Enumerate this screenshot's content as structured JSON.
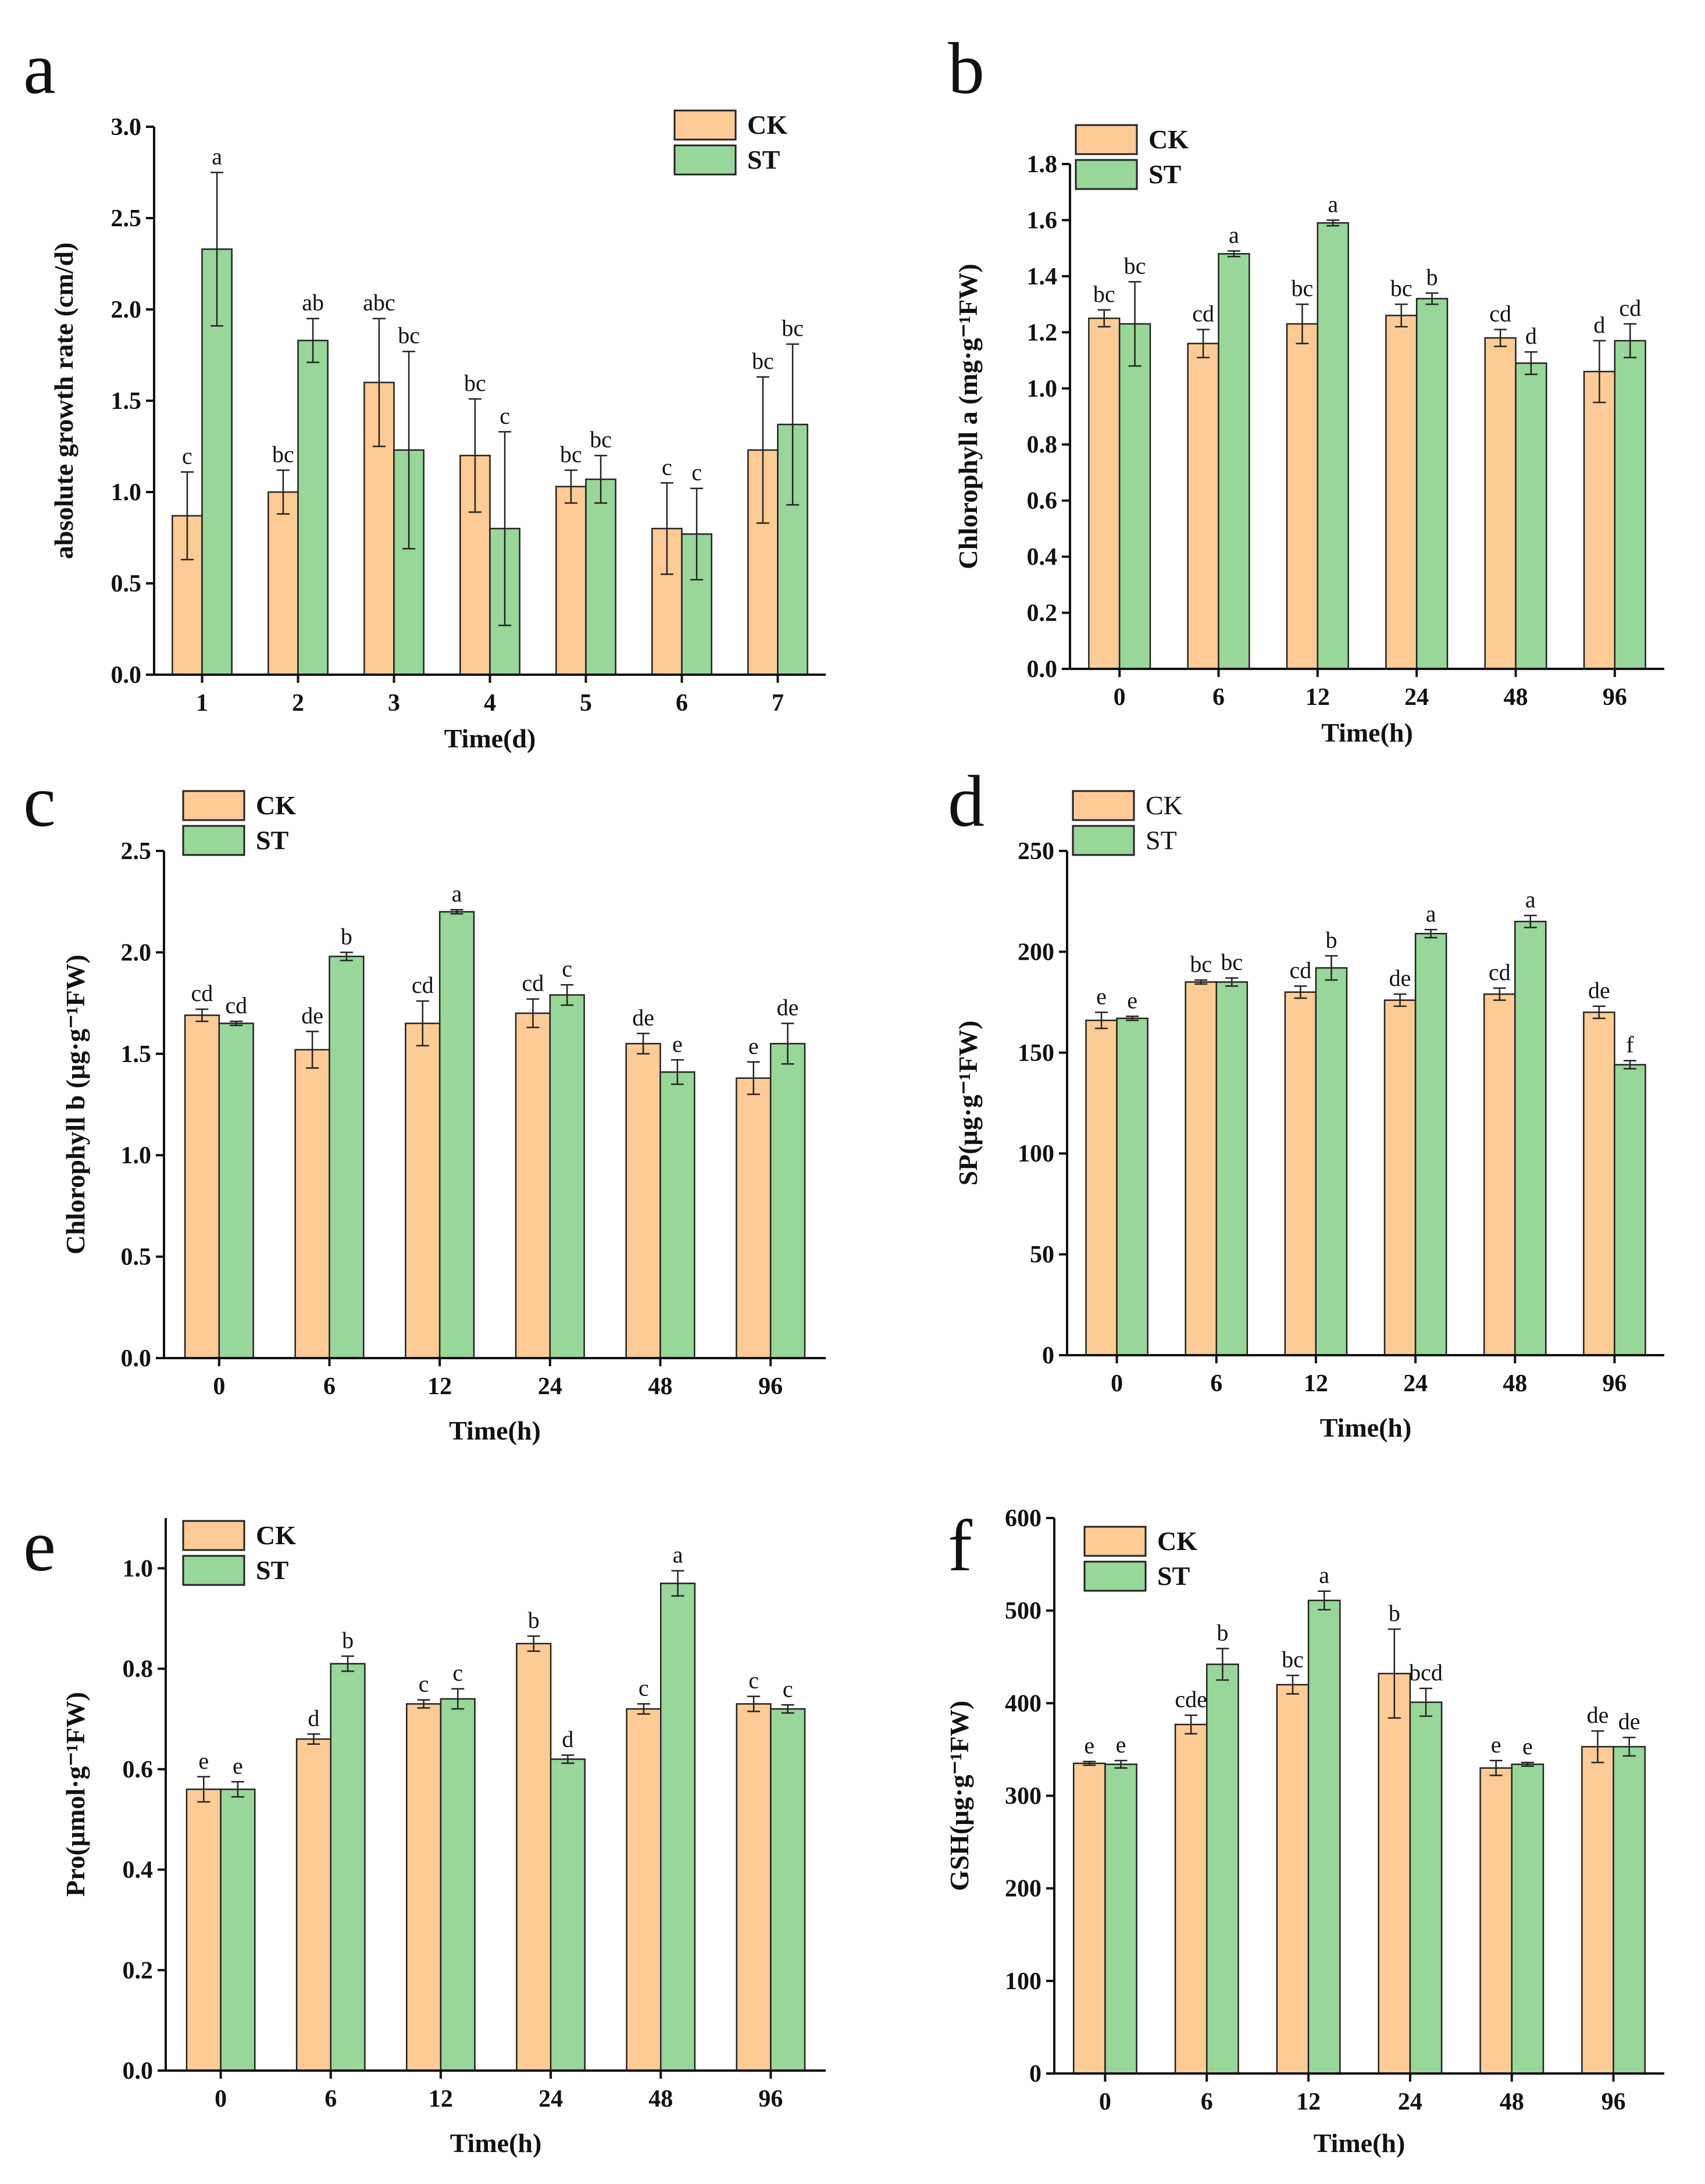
{
  "colors": {
    "CK": "#FDCB96",
    "ST": "#98D69A"
  },
  "chart_data": [
    {
      "id": "a",
      "panel_label": "a",
      "type": "bar",
      "xlabel": "Time(d)",
      "ylabel": "absolute growth rate (cm/d)",
      "ylim": [
        0,
        3.0
      ],
      "yticks": [
        "0.0",
        "0.5",
        "1.0",
        "1.5",
        "2.0",
        "2.5",
        "3.0"
      ],
      "categories": [
        "1",
        "2",
        "3",
        "4",
        "5",
        "6",
        "7"
      ],
      "legend_bold": true,
      "series": [
        {
          "name": "CK",
          "values": [
            0.87,
            1.0,
            1.6,
            1.2,
            1.03,
            0.8,
            1.23
          ],
          "errors": [
            0.24,
            0.12,
            0.35,
            0.31,
            0.09,
            0.25,
            0.4
          ],
          "labels": [
            "c",
            "bc",
            "abc",
            "bc",
            "bc",
            "c",
            "bc"
          ]
        },
        {
          "name": "ST",
          "values": [
            2.33,
            1.83,
            1.23,
            0.8,
            1.07,
            0.77,
            1.37
          ],
          "errors": [
            0.42,
            0.12,
            0.54,
            0.53,
            0.13,
            0.25,
            0.44
          ],
          "labels": [
            "a",
            "ab",
            "bc",
            "c",
            "bc",
            "c",
            "bc"
          ]
        }
      ]
    },
    {
      "id": "b",
      "panel_label": "b",
      "type": "bar",
      "xlabel": "Time(h)",
      "ylabel": "Chlorophyll a (mg·g⁻¹FW)",
      "ylim": [
        0,
        1.8
      ],
      "yticks": [
        "0.0",
        "0.2",
        "0.4",
        "0.6",
        "0.8",
        "1.0",
        "1.2",
        "1.4",
        "1.6",
        "1.8"
      ],
      "categories": [
        "0",
        "6",
        "12",
        "24",
        "48",
        "96"
      ],
      "legend_bold": true,
      "series": [
        {
          "name": "CK",
          "values": [
            1.25,
            1.16,
            1.23,
            1.26,
            1.18,
            1.06
          ],
          "errors": [
            0.03,
            0.05,
            0.07,
            0.04,
            0.03,
            0.11
          ],
          "labels": [
            "bc",
            "cd",
            "bc",
            "bc",
            "cd",
            "d"
          ]
        },
        {
          "name": "ST",
          "values": [
            1.23,
            1.48,
            1.59,
            1.32,
            1.09,
            1.17
          ],
          "errors": [
            0.15,
            0.01,
            0.01,
            0.02,
            0.04,
            0.06
          ],
          "labels": [
            "bc",
            "a",
            "a",
            "b",
            "d",
            "cd"
          ]
        }
      ]
    },
    {
      "id": "c",
      "panel_label": "c",
      "type": "bar",
      "xlabel": "Time(h)",
      "ylabel": "Chlorophyll b (μg·g⁻¹FW)",
      "ylim": [
        0,
        2.5
      ],
      "yticks": [
        "0.0",
        "0.5",
        "1.0",
        "1.5",
        "2.0",
        "2.5"
      ],
      "categories": [
        "0",
        "6",
        "12",
        "24",
        "48",
        "96"
      ],
      "legend_bold": true,
      "series": [
        {
          "name": "CK",
          "values": [
            1.69,
            1.52,
            1.65,
            1.7,
            1.55,
            1.38
          ],
          "errors": [
            0.03,
            0.09,
            0.11,
            0.07,
            0.05,
            0.08
          ],
          "labels": [
            "cd",
            "de",
            "cd",
            "cd",
            "de",
            "e"
          ]
        },
        {
          "name": "ST",
          "values": [
            1.65,
            1.98,
            2.2,
            1.79,
            1.41,
            1.55
          ],
          "errors": [
            0.01,
            0.02,
            0.01,
            0.05,
            0.06,
            0.1
          ],
          "labels": [
            "cd",
            "b",
            "a",
            "c",
            "e",
            "de"
          ]
        }
      ]
    },
    {
      "id": "d",
      "panel_label": "d",
      "type": "bar",
      "xlabel": "Time(h)",
      "ylabel": "SP(μg·g⁻¹FW)",
      "ylim": [
        0,
        250
      ],
      "yticks": [
        "0",
        "50",
        "100",
        "150",
        "200",
        "250"
      ],
      "categories": [
        "0",
        "6",
        "12",
        "24",
        "48",
        "96"
      ],
      "legend_bold": false,
      "series": [
        {
          "name": "CK",
          "values": [
            166,
            185,
            180,
            176,
            179,
            170
          ],
          "errors": [
            4,
            1,
            3,
            3,
            3,
            3
          ],
          "labels": [
            "e",
            "bc",
            "cd",
            "de",
            "cd",
            "de"
          ]
        },
        {
          "name": "ST",
          "values": [
            167,
            185,
            192,
            209,
            215,
            144
          ],
          "errors": [
            1,
            2,
            6,
            2,
            3,
            2
          ],
          "labels": [
            "e",
            "bc",
            "b",
            "a",
            "a",
            "f"
          ]
        }
      ]
    },
    {
      "id": "e",
      "panel_label": "e",
      "type": "bar",
      "xlabel": "Time(h)",
      "ylabel": "Pro(μmol·g⁻¹FW)",
      "ylim": [
        0,
        1.1
      ],
      "yticks": [
        "0.0",
        "0.2",
        "0.4",
        "0.6",
        "0.8",
        "1.0"
      ],
      "categories": [
        "0",
        "6",
        "12",
        "24",
        "48",
        "96"
      ],
      "legend_bold": true,
      "series": [
        {
          "name": "CK",
          "values": [
            0.56,
            0.66,
            0.73,
            0.85,
            0.72,
            0.73
          ],
          "errors": [
            0.025,
            0.01,
            0.008,
            0.015,
            0.01,
            0.015
          ],
          "labels": [
            "e",
            "d",
            "c",
            "b",
            "c",
            "c"
          ]
        },
        {
          "name": "ST",
          "values": [
            0.56,
            0.81,
            0.74,
            0.62,
            0.97,
            0.72
          ],
          "errors": [
            0.015,
            0.015,
            0.02,
            0.008,
            0.025,
            0.008
          ],
          "labels": [
            "e",
            "b",
            "c",
            "d",
            "a",
            "c"
          ]
        }
      ]
    },
    {
      "id": "f",
      "panel_label": "f",
      "type": "bar",
      "xlabel": "Time(h)",
      "ylabel": "GSH(μg·g⁻¹FW)",
      "ylim": [
        0,
        600
      ],
      "yticks": [
        "0",
        "100",
        "200",
        "300",
        "400",
        "500",
        "600"
      ],
      "categories": [
        "0",
        "6",
        "12",
        "24",
        "48",
        "96"
      ],
      "legend_bold": true,
      "series": [
        {
          "name": "CK",
          "values": [
            335,
            377,
            420,
            432,
            330,
            353
          ],
          "errors": [
            2,
            10,
            10,
            48,
            8,
            17
          ],
          "labels": [
            "e",
            "cde",
            "bc",
            "b",
            "e",
            "de"
          ]
        },
        {
          "name": "ST",
          "values": [
            334,
            442,
            511,
            401,
            334,
            353
          ],
          "errors": [
            4,
            17,
            10,
            15,
            2,
            10
          ],
          "labels": [
            "e",
            "b",
            "a",
            "bcd",
            "e",
            "de"
          ]
        }
      ]
    }
  ]
}
